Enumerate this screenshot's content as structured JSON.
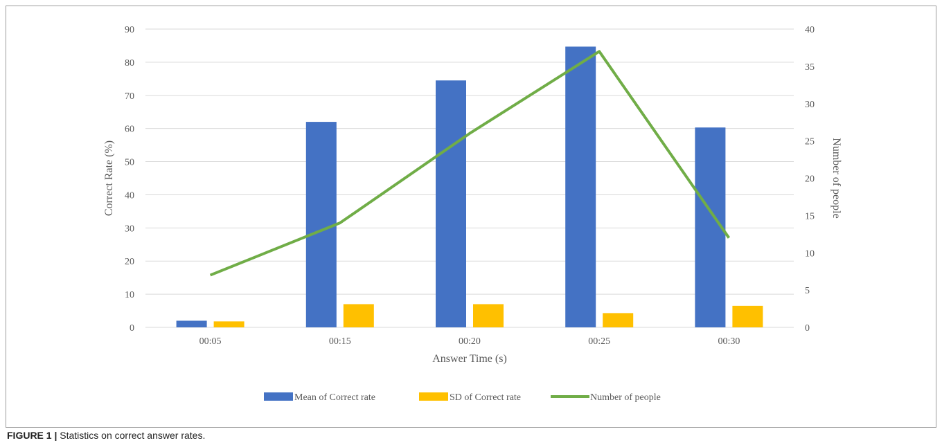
{
  "chart_data": {
    "type": "bar",
    "categories": [
      "00:05",
      "00:15",
      "00:20",
      "00:25",
      "00:30"
    ],
    "xlabel": "Answer Time (s)",
    "ylabel": "Correct Rate (%)",
    "y2label": "Number of people",
    "ylim": [
      0,
      90
    ],
    "y2lim": [
      0,
      40
    ],
    "yticks": [
      0,
      10,
      20,
      30,
      40,
      50,
      60,
      70,
      80,
      90
    ],
    "y2ticks": [
      0,
      5,
      10,
      15,
      20,
      25,
      30,
      35,
      40
    ],
    "grid": true,
    "legend_position": "bottom",
    "series": [
      {
        "name": "Mean of Correct rate",
        "kind": "bar",
        "axis": "left",
        "color": "#4472C4",
        "values": [
          2,
          62,
          74.5,
          84.7,
          60.3
        ]
      },
      {
        "name": "SD of Correct rate",
        "kind": "bar",
        "axis": "left",
        "color": "#FFC000",
        "values": [
          1.8,
          7,
          7,
          4.3,
          6.5
        ]
      },
      {
        "name": "Number of people",
        "kind": "line",
        "axis": "right",
        "color": "#70AD47",
        "values": [
          7,
          14,
          26,
          37,
          12
        ]
      }
    ]
  },
  "caption": {
    "label": "FIGURE 1 |",
    "text": " Statistics on correct answer rates."
  }
}
